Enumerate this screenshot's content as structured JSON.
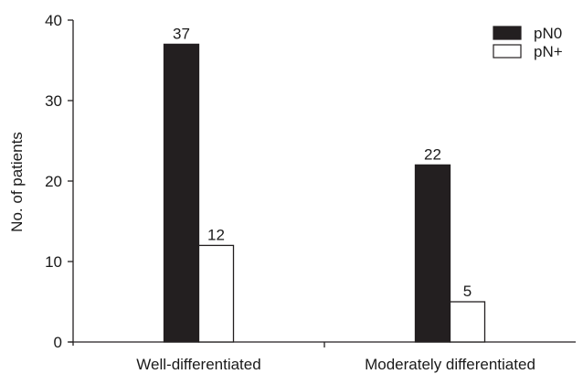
{
  "chart_data": {
    "type": "bar",
    "title": "",
    "xlabel": "",
    "ylabel": "No. of patients",
    "ylim": [
      0,
      40
    ],
    "yticks": [
      0,
      10,
      20,
      30,
      40
    ],
    "categories": [
      "Well-differentiated",
      "Moderately differentiated"
    ],
    "series": [
      {
        "name": "pN0",
        "values": [
          37,
          22
        ],
        "color": "#231f20"
      },
      {
        "name": "pN+",
        "values": [
          12,
          5
        ],
        "color": "#ffffff"
      }
    ],
    "data_labels": true,
    "legend_position": "top-right",
    "grid": false
  }
}
